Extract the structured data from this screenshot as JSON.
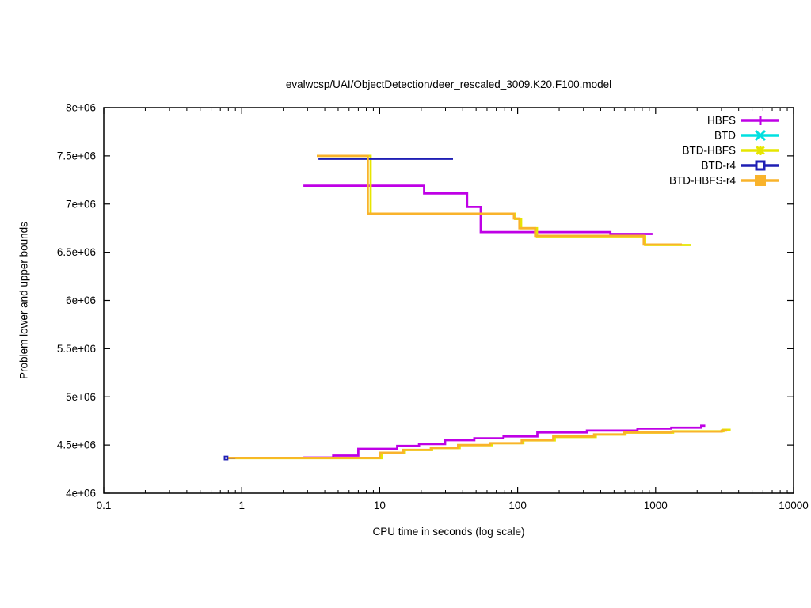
{
  "chart_data": {
    "type": "line",
    "subtype": "step-bounds",
    "title": "evalwcsp/UAI/ObjectDetection/deer_rescaled_3009.K20.F100.model",
    "xlabel": "CPU time in seconds (log scale)",
    "ylabel": "Problem lower and upper bounds",
    "x_scale": "log",
    "xlim": [
      0.1,
      10000
    ],
    "ylim": [
      4000000,
      8000000
    ],
    "grid": false,
    "legend_position": "top-right-inside",
    "x_ticks": [
      {
        "label": "0.1",
        "v": 0.1
      },
      {
        "label": "1",
        "v": 1
      },
      {
        "label": "10",
        "v": 10
      },
      {
        "label": "100",
        "v": 100
      },
      {
        "label": "1000",
        "v": 1000
      },
      {
        "label": "10000",
        "v": 10000
      }
    ],
    "y_ticks": [
      {
        "label": "4e+06",
        "v": 4000000
      },
      {
        "label": "4.5e+06",
        "v": 4500000
      },
      {
        "label": "5e+06",
        "v": 5000000
      },
      {
        "label": "5.5e+06",
        "v": 5500000
      },
      {
        "label": "6e+06",
        "v": 6000000
      },
      {
        "label": "6.5e+06",
        "v": 6500000
      },
      {
        "label": "7e+06",
        "v": 7000000
      },
      {
        "label": "7.5e+06",
        "v": 7500000
      },
      {
        "label": "8e+06",
        "v": 8000000
      }
    ],
    "series": [
      {
        "name": "HBFS",
        "color": "#bf00e6",
        "marker": "plus",
        "segments": {
          "upper_bound": [
            [
              2.8,
              7190000
            ],
            [
              21,
              7190000
            ],
            [
              21,
              7110000
            ],
            [
              43,
              7110000
            ],
            [
              43,
              6970000
            ],
            [
              54,
              6970000
            ],
            [
              54,
              6710000
            ],
            [
              470,
              6710000
            ],
            [
              470,
              6690000
            ],
            [
              950,
              6690000
            ]
          ],
          "lower_bound": [
            [
              2.8,
              4370000
            ],
            [
              4.6,
              4370000
            ],
            [
              4.6,
              4390000
            ],
            [
              7,
              4390000
            ],
            [
              7,
              4460000
            ],
            [
              13.4,
              4460000
            ],
            [
              13.4,
              4490000
            ],
            [
              19.3,
              4490000
            ],
            [
              19.3,
              4510000
            ],
            [
              29.8,
              4510000
            ],
            [
              29.8,
              4550000
            ],
            [
              48.5,
              4550000
            ],
            [
              48.5,
              4570000
            ],
            [
              79,
              4570000
            ],
            [
              79,
              4590000
            ],
            [
              139,
              4590000
            ],
            [
              139,
              4630000
            ],
            [
              318,
              4630000
            ],
            [
              318,
              4650000
            ],
            [
              739,
              4650000
            ],
            [
              739,
              4670000
            ],
            [
              1300,
              4670000
            ],
            [
              1300,
              4680000
            ],
            [
              2140,
              4680000
            ],
            [
              2140,
              4700000
            ],
            [
              2290,
              4700000
            ]
          ]
        },
        "marker_points": []
      },
      {
        "name": "BTD",
        "color": "#00e0e0",
        "marker": "cross",
        "segments": {},
        "marker_points": []
      },
      {
        "name": "BTD-HBFS",
        "color": "#e6e600",
        "marker": "star",
        "segments": {
          "upper_bound": [
            [
              3.7,
              7500000
            ],
            [
              8.6,
              7500000
            ],
            [
              8.6,
              6900000
            ],
            [
              96,
              6900000
            ],
            [
              96,
              6845000
            ],
            [
              106,
              6845000
            ],
            [
              106,
              6750000
            ],
            [
              138,
              6750000
            ],
            [
              138,
              6665000
            ],
            [
              840,
              6665000
            ],
            [
              840,
              6575000
            ],
            [
              1800,
              6575000
            ]
          ],
          "lower_bound": [
            [
              0.8,
              4363000
            ],
            [
              10.3,
              4363000
            ],
            [
              10.3,
              4418000
            ],
            [
              15.2,
              4418000
            ],
            [
              15.2,
              4448000
            ],
            [
              24,
              4448000
            ],
            [
              24,
              4468000
            ],
            [
              38,
              4468000
            ],
            [
              38,
              4498000
            ],
            [
              65,
              4498000
            ],
            [
              65,
              4518000
            ],
            [
              110,
              4518000
            ],
            [
              110,
              4548000
            ],
            [
              186,
              4548000
            ],
            [
              186,
              4583000
            ],
            [
              368,
              4583000
            ],
            [
              368,
              4608000
            ],
            [
              605,
              4608000
            ],
            [
              605,
              4628000
            ],
            [
              1340,
              4628000
            ],
            [
              1340,
              4643000
            ],
            [
              3100,
              4643000
            ],
            [
              3100,
              4658000
            ],
            [
              3500,
              4658000
            ]
          ]
        },
        "marker_points": []
      },
      {
        "name": "BTD-r4",
        "color": "#1f1fb4",
        "marker": "open-square",
        "segments": {
          "upper_bound": [
            [
              3.6,
              7470000
            ],
            [
              34,
              7470000
            ]
          ],
          "lower_bound": [
            [
              0.77,
              4365000
            ],
            [
              0.9,
              4365000
            ]
          ]
        },
        "marker_points": [
          [
            0.77,
            4365000
          ]
        ]
      },
      {
        "name": "BTD-HBFS-r4",
        "color": "#f9b32b",
        "marker": "filled-square",
        "segments": {
          "upper_bound": [
            [
              3.5,
              7500000
            ],
            [
              8.2,
              7500000
            ],
            [
              8.2,
              6900000
            ],
            [
              94,
              6900000
            ],
            [
              94,
              6850000
            ],
            [
              103,
              6850000
            ],
            [
              103,
              6750000
            ],
            [
              134,
              6750000
            ],
            [
              134,
              6670000
            ],
            [
              820,
              6670000
            ],
            [
              820,
              6580000
            ],
            [
              1550,
              6580000
            ]
          ],
          "lower_bound": [
            [
              0.8,
              4366000
            ],
            [
              10,
              4366000
            ],
            [
              10,
              4420000
            ],
            [
              14.8,
              4420000
            ],
            [
              14.8,
              4450000
            ],
            [
              23.5,
              4450000
            ],
            [
              23.5,
              4470000
            ],
            [
              37,
              4470000
            ],
            [
              37,
              4500000
            ],
            [
              63,
              4500000
            ],
            [
              63,
              4520000
            ],
            [
              107,
              4520000
            ],
            [
              107,
              4550000
            ],
            [
              181,
              4550000
            ],
            [
              181,
              4590000
            ],
            [
              358,
              4590000
            ],
            [
              358,
              4610000
            ],
            [
              590,
              4610000
            ],
            [
              590,
              4630000
            ],
            [
              1300,
              4630000
            ],
            [
              1300,
              4640000
            ],
            [
              3010,
              4640000
            ],
            [
              3010,
              4650000
            ],
            [
              3300,
              4650000
            ]
          ]
        },
        "marker_points": []
      }
    ]
  }
}
